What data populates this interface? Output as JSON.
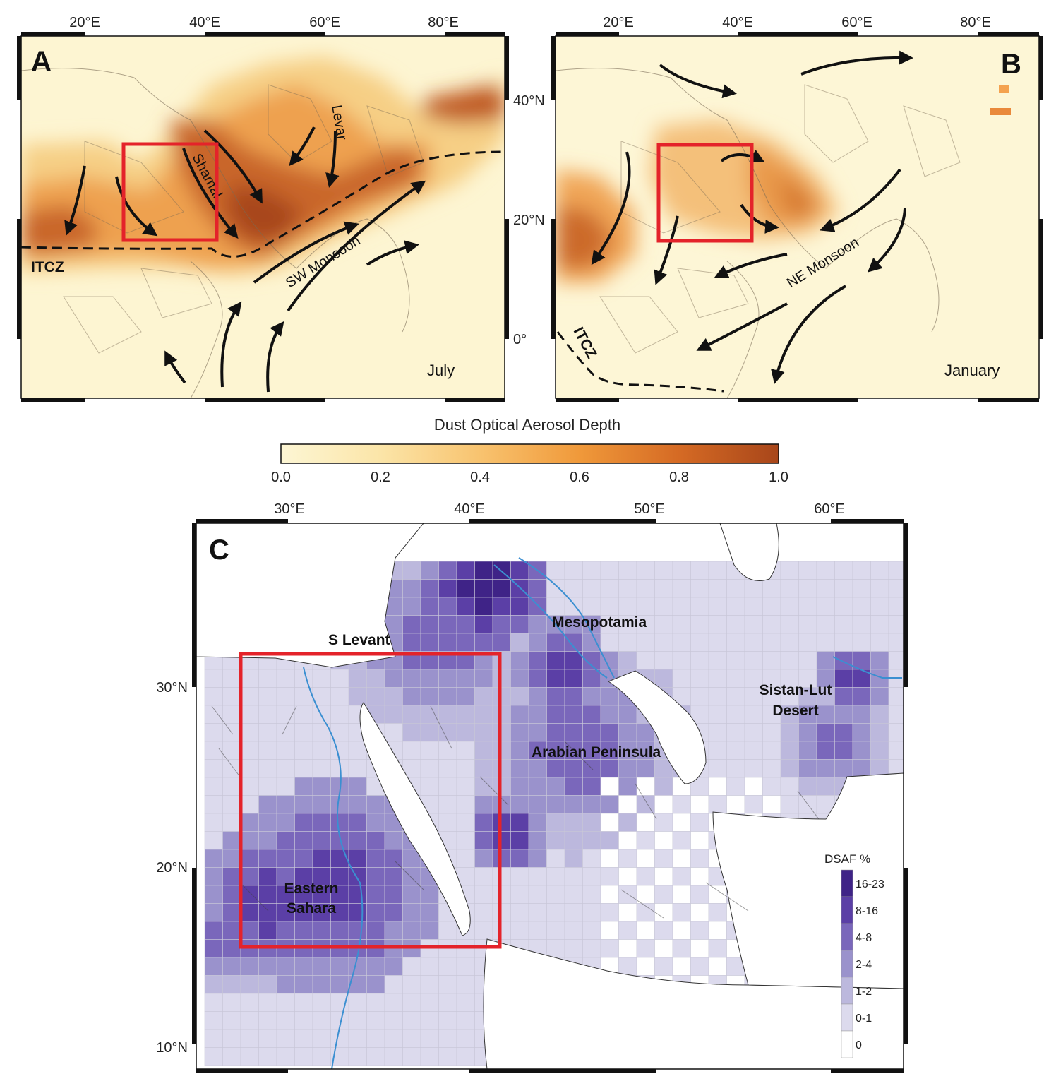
{
  "panel_a": {
    "letter": "A",
    "month": "July",
    "lon_ticks": [
      "20°E",
      "40°E",
      "60°E",
      "80°E"
    ],
    "lat_ticks": [
      "40°N",
      "20°N",
      "0°"
    ],
    "wind_labels": {
      "shamal": "Shamal",
      "levar": "Levar",
      "sw_monsoon": "SW Monsoon",
      "itcz": "ITCZ"
    }
  },
  "panel_b": {
    "letter": "B",
    "month": "January",
    "lon_ticks": [
      "20°E",
      "40°E",
      "60°E",
      "80°E"
    ],
    "wind_labels": {
      "ne_monsoon": "NE Monsoon",
      "itcz": "ITCZ"
    }
  },
  "colorbar": {
    "title": "Dust Optical Aerosol Depth",
    "ticks": [
      "0.0",
      "0.2",
      "0.4",
      "0.6",
      "0.8",
      "1.0"
    ],
    "range": [
      0.0,
      1.0
    ],
    "colors": [
      "#fdf6d4",
      "#fbe5a8",
      "#f8c36f",
      "#f0993a",
      "#d56a24",
      "#a8461a"
    ]
  },
  "panel_c": {
    "letter": "C",
    "lon_ticks": [
      "30°E",
      "40°E",
      "50°E",
      "60°E"
    ],
    "lat_ticks": [
      "30°N",
      "20°N",
      "10°N"
    ],
    "regions": {
      "mesopotamia": "Mesopotamia",
      "s_levant": "S Levant",
      "sistan_line1": "Sistan-Lut",
      "sistan_line2": "Desert",
      "arabian": "Arabian Peninsula",
      "sahara_line1": "Eastern",
      "sahara_line2": "Sahara"
    },
    "legend": {
      "title": "DSAF %",
      "classes": [
        "16-23",
        "8-16",
        "4-8",
        "2-4",
        "1-2",
        "0-1",
        "0"
      ],
      "colors": [
        "#3f2387",
        "#5b3fa6",
        "#7a67bb",
        "#9a92cc",
        "#bcb8dd",
        "#dcdaed",
        "#ffffff"
      ]
    }
  },
  "colors": {
    "study_box": "#e4232a"
  }
}
